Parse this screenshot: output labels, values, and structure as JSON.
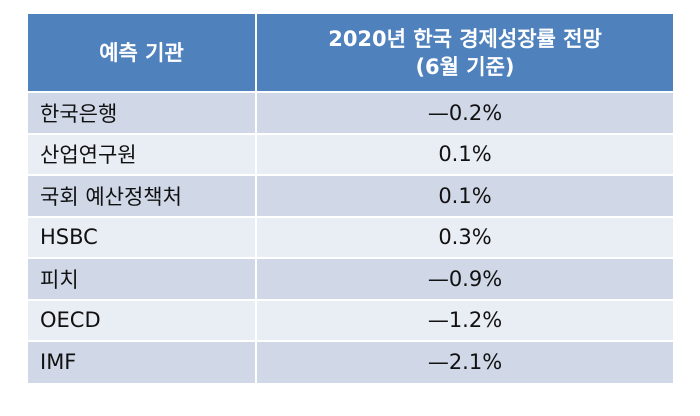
{
  "table": {
    "header": {
      "org_label": "예측 기관",
      "forecast_label_line1": "2020년 한국 경제성장률 전망",
      "forecast_label_line2": "(6월 기준)"
    },
    "rows": [
      {
        "org": "한국은행",
        "value": "—0.2%"
      },
      {
        "org": "산업연구원",
        "value": "0.1%"
      },
      {
        "org": "국회 예산정책처",
        "value": "0.1%"
      },
      {
        "org": "HSBC",
        "value": "0.3%"
      },
      {
        "org": "피치",
        "value": "—0.9%"
      },
      {
        "org": "OECD",
        "value": "—1.2%"
      },
      {
        "org": "IMF",
        "value": "—2.1%"
      }
    ],
    "colors": {
      "header_bg": "#4f81bd",
      "row_odd_bg": "#d0d8e8",
      "row_even_bg": "#e9edf4"
    }
  }
}
